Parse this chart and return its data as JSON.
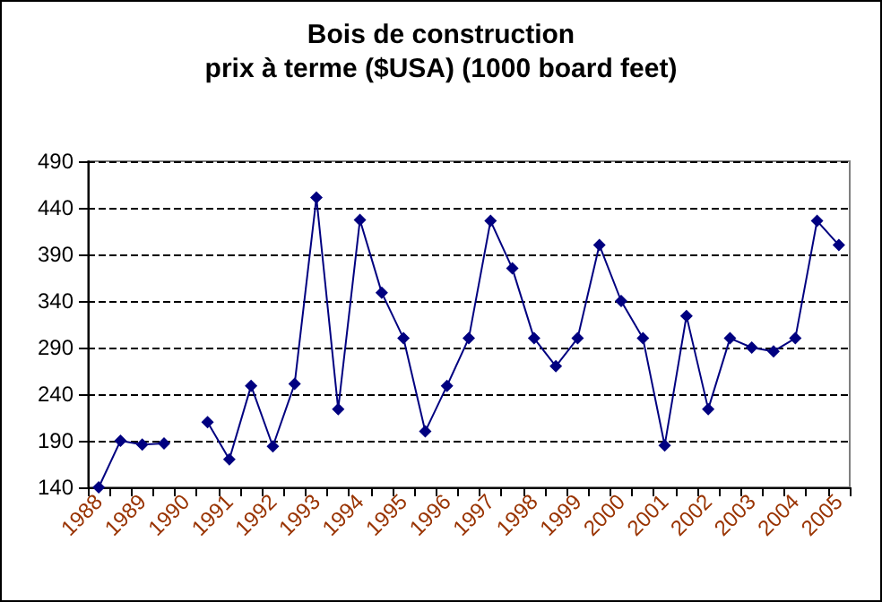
{
  "chart_data": {
    "type": "line",
    "title": "Bois de construction",
    "subtitle": "prix à terme ($USA) (1000 board feet)",
    "categories": [
      "1988",
      null,
      "1989",
      null,
      "1990",
      null,
      "1991",
      null,
      "1992",
      null,
      "1993",
      null,
      "1994",
      null,
      "1995",
      null,
      "1996",
      null,
      "1997",
      null,
      "1998",
      null,
      "1999",
      null,
      "2000",
      null,
      "2001",
      null,
      "2002",
      null,
      "2003",
      null,
      "2004",
      null,
      "2005"
    ],
    "series": [
      {
        "color": "#000080",
        "values": [
          140,
          190,
          186,
          187,
          null,
          210,
          170,
          249,
          184,
          251,
          451,
          224,
          427,
          349,
          300,
          200,
          249,
          300,
          426,
          375,
          300,
          270,
          300,
          400,
          340,
          300,
          185,
          324,
          224,
          300,
          290,
          286,
          300,
          426,
          400
        ]
      }
    ],
    "ylim": [
      140,
      490
    ],
    "yticks": [
      140,
      190,
      240,
      290,
      340,
      390,
      440,
      490
    ],
    "grid": "y",
    "marker": "diamond",
    "line_style": "solid"
  }
}
